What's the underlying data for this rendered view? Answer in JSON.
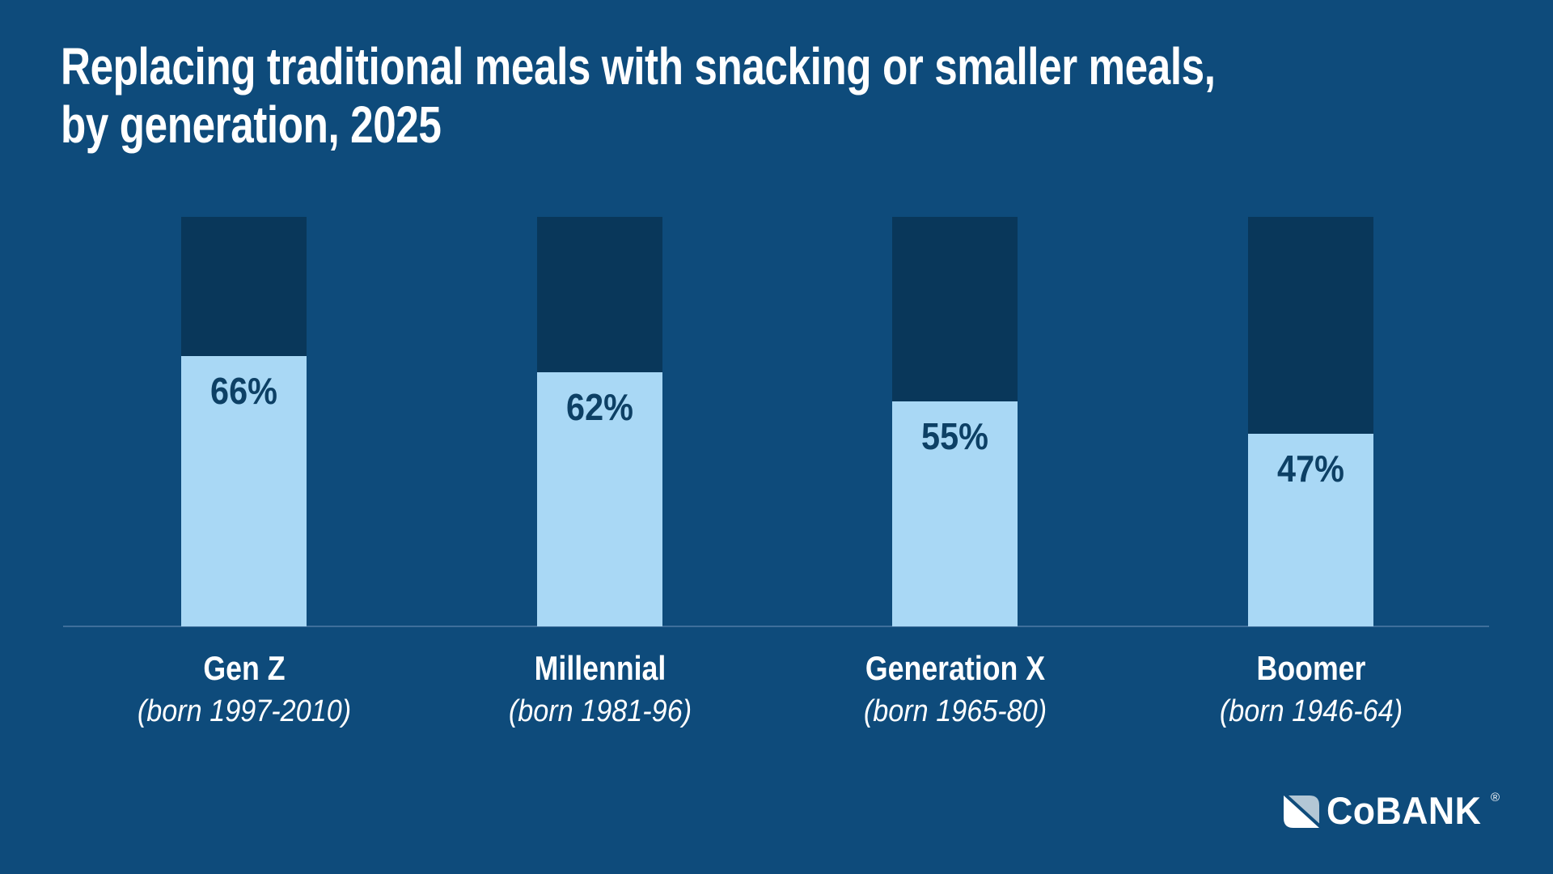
{
  "title": {
    "line1": "Replacing traditional meals with snacking or smaller meals,",
    "line2": "by generation, 2025"
  },
  "chart_data": {
    "type": "bar",
    "stacked": true,
    "title": "Replacing traditional meals with snacking or smaller meals, by generation, 2025",
    "categories": [
      "Gen Z",
      "Millennial",
      "Generation X",
      "Boomer"
    ],
    "category_sublabels": [
      "(born 1997-2010)",
      "(born 1981-96)",
      "(born 1965-80)",
      "(born 1946-64)"
    ],
    "values": [
      66,
      62,
      55,
      47
    ],
    "value_labels": [
      "66%",
      "62%",
      "55%",
      "47%"
    ],
    "ylim": [
      0,
      100
    ],
    "bars_filled_to": 100,
    "grid": false,
    "legend": false,
    "xlabel": "",
    "ylabel": ""
  },
  "colors": {
    "background": "#0E4B7B",
    "bar_dark": "#09375A",
    "bar_light": "#A9D8F5",
    "value_text": "#0D4065",
    "title_text": "#FFFFFF",
    "label_text": "#FFFFFF",
    "baseline": "#3F6F9B",
    "logo_accent": "#B3C7D5",
    "logo_white": "#FFFFFF"
  },
  "logo": {
    "text": "CoBANK",
    "registered": "®"
  }
}
